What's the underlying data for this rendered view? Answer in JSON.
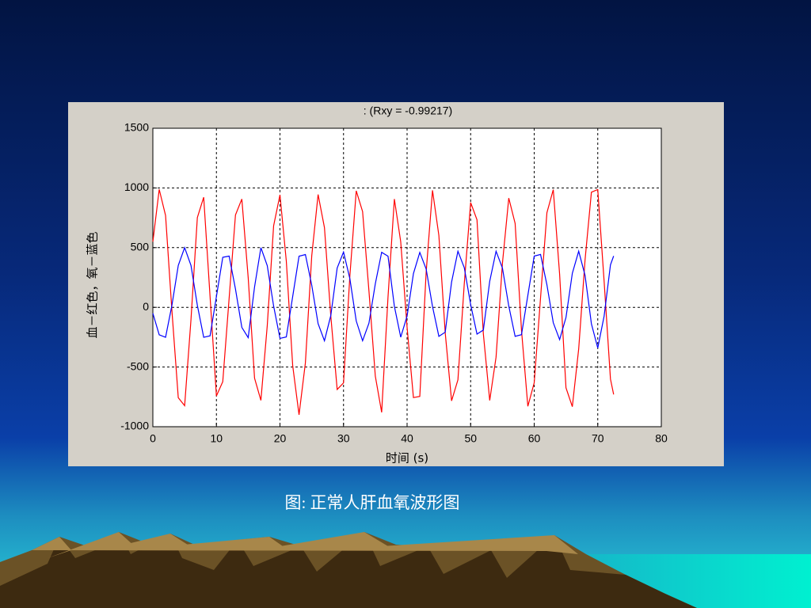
{
  "chart_data": {
    "type": "line",
    "title": ":      (Rxy = -0.99217)",
    "xlabel": "时间  (s)",
    "ylabel": "血－红色，氧－蓝色",
    "x": [
      0,
      1,
      2,
      3,
      4,
      5,
      6,
      7,
      8,
      9,
      10,
      11,
      12,
      13,
      14,
      15,
      16,
      17,
      18,
      19,
      20,
      21,
      22,
      23,
      24,
      25,
      26,
      27,
      28,
      29,
      30,
      31,
      32,
      33,
      34,
      35,
      36,
      37,
      38,
      39,
      40,
      41,
      42,
      43,
      44,
      45,
      46,
      47,
      48,
      49,
      50,
      51,
      52,
      53,
      54,
      55,
      56,
      57,
      58,
      59,
      60,
      61,
      62,
      63,
      64,
      65,
      66,
      67,
      68,
      69,
      70,
      71,
      72,
      72.5
    ],
    "series": [
      {
        "color": "#ff0000",
        "values": [
          550,
          988,
          769,
          -28,
          -757,
          -824,
          -102,
          752,
          922,
          90,
          -742,
          -623,
          75,
          774,
          907,
          249,
          -593,
          -779,
          -153,
          683,
          942,
          386,
          -487,
          -900,
          -465,
          432,
          945,
          667,
          -74,
          -688,
          -633,
          265,
          976,
          802,
          137,
          -576,
          -880,
          88,
          907,
          549,
          -167,
          -756,
          -746,
          295,
          980,
          602,
          -214,
          -783,
          -607,
          200,
          878,
          733,
          -222,
          -780,
          -417,
          368,
          915,
          703,
          -191,
          -829,
          -632,
          80,
          792,
          986,
          276,
          -674,
          -832,
          -348,
          396,
          964,
          987,
          219,
          -601,
          -730
        ]
      },
      {
        "color": "#0000ff",
        "values": [
          -50,
          -230,
          -251,
          17,
          351,
          500,
          351,
          17,
          -251,
          -239,
          90,
          419,
          429,
          153,
          -168,
          -254,
          170,
          500,
          349,
          11,
          -260,
          -248,
          90,
          428,
          442,
          185,
          -137,
          -280,
          -68,
          329,
          463,
          239,
          -114,
          -280,
          -133,
          197,
          461,
          428,
          9,
          -250,
          -73,
          283,
          460,
          321,
          7,
          -243,
          -208,
          211,
          470,
          332,
          24,
          -224,
          -190,
          218,
          470,
          329,
          11,
          -243,
          -229,
          100,
          429,
          443,
          189,
          -129,
          -270,
          -85,
          285,
          470,
          268,
          -138,
          -340,
          -74,
          356,
          430
        ]
      }
    ],
    "xlim": [
      0,
      80
    ],
    "xticks": [
      0,
      10,
      20,
      30,
      40,
      50,
      60,
      70,
      80
    ],
    "ylim": [
      -1000,
      1500
    ],
    "yticks": [
      -1000,
      -500,
      0,
      500,
      1000,
      1500
    ],
    "grid": true
  },
  "caption": "图: 正常人肝血氧波形图"
}
